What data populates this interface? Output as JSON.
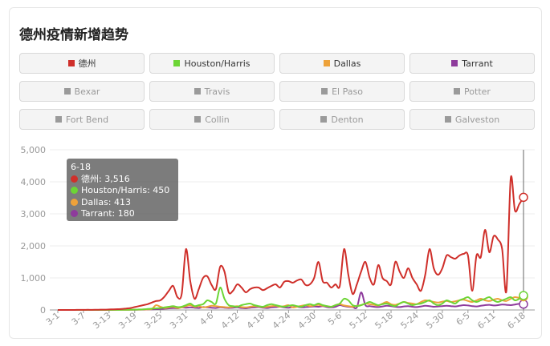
{
  "chart_data": {
    "type": "line",
    "title": "德州疫情新增趋势",
    "categories": [
      "3-1",
      null,
      null,
      null,
      null,
      null,
      "3-7",
      null,
      null,
      null,
      null,
      null,
      "3-13",
      null,
      null,
      null,
      null,
      null,
      "3-19",
      null,
      null,
      null,
      null,
      null,
      "3-25",
      null,
      null,
      null,
      null,
      null,
      "3-31",
      null,
      null,
      null,
      null,
      null,
      "4-6",
      null,
      null,
      null,
      null,
      null,
      "4-12",
      null,
      null,
      null,
      null,
      null,
      "4-18",
      null,
      null,
      null,
      null,
      null,
      "4-24",
      null,
      null,
      null,
      null,
      null,
      "4-30",
      null,
      null,
      null,
      null,
      null,
      "5-6",
      null,
      null,
      null,
      null,
      null,
      "5-12",
      null,
      null,
      null,
      null,
      null,
      "5-18",
      null,
      null,
      null,
      null,
      null,
      "5-24",
      null,
      null,
      null,
      null,
      null,
      "5-30",
      null,
      null,
      null,
      null,
      null,
      "6-5",
      null,
      null,
      null,
      null,
      null,
      "6-11",
      null,
      null,
      null,
      null,
      null,
      null,
      "6-18"
    ],
    "series": [
      {
        "name": "德州",
        "color": "#cf2f2a",
        "values": [
          0,
          0,
          0,
          0,
          1,
          3,
          2,
          5,
          4,
          6,
          8,
          10,
          15,
          20,
          25,
          30,
          45,
          60,
          90,
          120,
          150,
          180,
          230,
          280,
          300,
          420,
          600,
          750,
          400,
          500,
          1900,
          900,
          350,
          650,
          1000,
          1050,
          780,
          650,
          1350,
          1200,
          550,
          600,
          800,
          700,
          550,
          650,
          700,
          700,
          620,
          680,
          750,
          800,
          700,
          880,
          900,
          850,
          920,
          950,
          780,
          800,
          1000,
          1500,
          900,
          850,
          700,
          800,
          750,
          1900,
          1100,
          500,
          800,
          1200,
          1500,
          1000,
          800,
          1400,
          1000,
          900,
          800,
          1500,
          1200,
          1000,
          1300,
          1000,
          800,
          600,
          1100,
          1900,
          1300,
          1100,
          1300,
          1700,
          1650,
          1600,
          1700,
          1750,
          1700,
          600,
          1700,
          1650,
          2500,
          1800,
          2300,
          2200,
          1900,
          600,
          4100,
          3100,
          3300,
          3516
        ]
      },
      {
        "name": "Houston/Harris",
        "color": "#6cd535",
        "values": [
          0,
          0,
          0,
          0,
          0,
          0,
          0,
          0,
          0,
          0,
          0,
          0,
          1,
          2,
          3,
          5,
          5,
          8,
          10,
          15,
          20,
          30,
          40,
          50,
          60,
          80,
          100,
          120,
          90,
          100,
          150,
          200,
          120,
          150,
          180,
          300,
          250,
          200,
          700,
          350,
          150,
          120,
          100,
          150,
          180,
          200,
          150,
          120,
          100,
          150,
          180,
          150,
          120,
          100,
          130,
          150,
          120,
          100,
          150,
          180,
          150,
          200,
          150,
          120,
          100,
          150,
          200,
          350,
          300,
          150,
          120,
          150,
          200,
          250,
          200,
          150,
          180,
          200,
          150,
          120,
          200,
          250,
          200,
          150,
          180,
          200,
          250,
          300,
          200,
          150,
          200,
          300,
          250,
          200,
          300,
          350,
          400,
          300,
          250,
          300,
          350,
          400,
          300,
          250,
          300,
          350,
          400,
          300,
          350,
          450
        ]
      },
      {
        "name": "Dallas",
        "color": "#eda23a",
        "values": [
          0,
          0,
          0,
          0,
          0,
          0,
          0,
          0,
          0,
          0,
          0,
          0,
          0,
          1,
          2,
          3,
          4,
          5,
          8,
          10,
          15,
          20,
          30,
          150,
          100,
          60,
          80,
          100,
          60,
          80,
          120,
          150,
          100,
          120,
          80,
          100,
          130,
          120,
          100,
          90,
          80,
          100,
          120,
          90,
          80,
          100,
          120,
          110,
          90,
          100,
          120,
          130,
          100,
          120,
          150,
          80,
          100,
          130,
          150,
          120,
          140,
          160,
          130,
          120,
          100,
          150,
          180,
          140,
          120,
          100,
          130,
          150,
          200,
          180,
          160,
          140,
          200,
          250,
          180,
          160,
          200,
          250,
          220,
          200,
          180,
          250,
          300,
          280,
          250,
          230,
          260,
          280,
          250,
          270,
          300,
          320,
          280,
          250,
          300,
          350,
          300,
          280,
          320,
          350,
          300,
          280,
          350,
          400,
          380,
          413
        ]
      },
      {
        "name": "Tarrant",
        "color": "#8e3b9c",
        "values": [
          0,
          0,
          0,
          0,
          0,
          0,
          0,
          0,
          0,
          0,
          0,
          0,
          0,
          1,
          2,
          3,
          4,
          5,
          6,
          8,
          10,
          15,
          20,
          25,
          30,
          40,
          50,
          60,
          50,
          80,
          70,
          80,
          70,
          60,
          90,
          80,
          70,
          60,
          80,
          70,
          60,
          70,
          80,
          60,
          50,
          70,
          80,
          90,
          70,
          60,
          80,
          90,
          100,
          80,
          70,
          90,
          100,
          80,
          90,
          100,
          110,
          100,
          120,
          90,
          80,
          100,
          150,
          120,
          100,
          90,
          80,
          550,
          150,
          120,
          100,
          90,
          110,
          130,
          120,
          100,
          90,
          110,
          120,
          100,
          90,
          110,
          130,
          120,
          100,
          110,
          120,
          130,
          120,
          110,
          130,
          150,
          140,
          120,
          110,
          130,
          150,
          160,
          140,
          150,
          170,
          160,
          150,
          170,
          190,
          180
        ]
      }
    ],
    "inactive_legend": [
      "Bexar",
      "Travis",
      "El Paso",
      "Potter",
      "Fort Bend",
      "Collin",
      "Denton",
      "Galveston"
    ],
    "inactive_color": "#9a9a9a",
    "ylim": [
      0,
      5000
    ],
    "yticks": [
      0,
      {
        "value": 1000,
        "label": "1,000"
      },
      {
        "value": 2000,
        "label": "2,000"
      },
      {
        "value": 3000,
        "label": "3,000"
      },
      {
        "value": 4000,
        "label": "4,000"
      },
      {
        "value": 5000,
        "label": "5,000"
      }
    ],
    "grid": true,
    "tooltip": {
      "title": "6-18",
      "lines": [
        "德州: 3,516",
        "Houston/Harris: 450",
        "Dallas: 413",
        "Tarrant: 180"
      ]
    }
  }
}
